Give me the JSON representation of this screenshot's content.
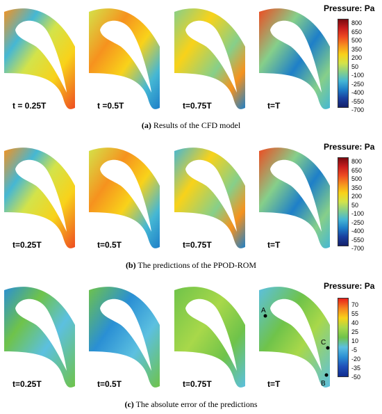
{
  "rows": [
    {
      "caption_letter": "(a)",
      "caption_text": " Results of the CFD model",
      "time_labels": [
        "t = 0.25T",
        "t =0.5T",
        "t=0.75T",
        "t=T"
      ],
      "legend_title": "Pressure: Pa",
      "legend_ticks": [
        "800",
        "650",
        "500",
        "350",
        "200",
        "50",
        "-100",
        "-250",
        "-400",
        "-550",
        "-700"
      ]
    },
    {
      "caption_letter": "(b)",
      "caption_text": " The predictions of the PPOD-ROM",
      "time_labels": [
        "t=0.25T",
        "t=0.5T",
        "t=0.75T",
        "t=T"
      ],
      "legend_title": "Pressure: Pa",
      "legend_ticks": [
        "800",
        "650",
        "500",
        "350",
        "200",
        "50",
        "-100",
        "-250",
        "-400",
        "-550",
        "-700"
      ]
    },
    {
      "caption_letter": "(c)",
      "caption_text": " The absolute error of the predictions",
      "time_labels": [
        "t=0.25T",
        "t=0.5T",
        "t=0.75T",
        "t=T"
      ],
      "legend_title": "Pressure: Pa",
      "legend_ticks": [
        "70",
        "55",
        "40",
        "25",
        "10",
        "-5",
        "-20",
        "-35",
        "-50"
      ]
    }
  ],
  "points": [
    "A",
    "B",
    "C"
  ],
  "colors": {
    "pressure_scale": [
      "#7a0a10",
      "#c81e1e",
      "#ee4b22",
      "#f6921e",
      "#f8d21a",
      "#d3e34a",
      "#86cf8a",
      "#45b7d4",
      "#1e7fc8",
      "#1a3f9e",
      "#14206b"
    ],
    "error_scale": [
      "#e8201a",
      "#f5841f",
      "#f8d21a",
      "#a8d84a",
      "#6fc34a",
      "#5cc0e0",
      "#2a8fd4",
      "#1f4fb8",
      "#102c8f"
    ]
  }
}
